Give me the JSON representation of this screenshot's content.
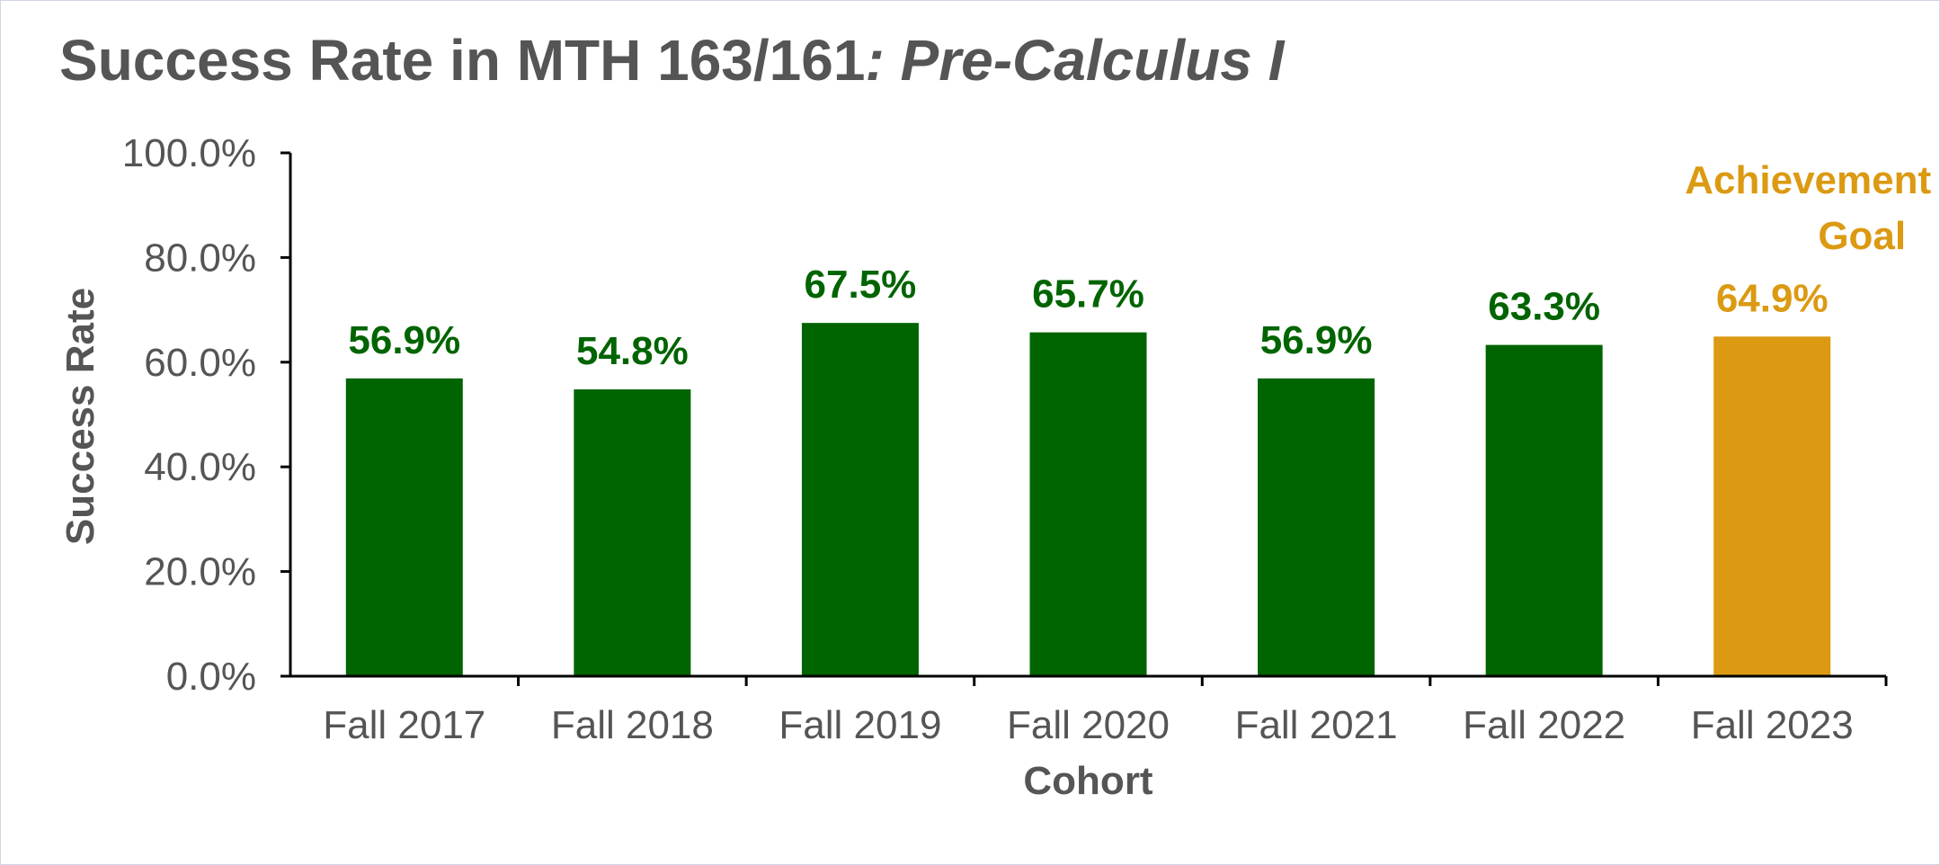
{
  "title": {
    "main": "Success Rate in MTH 163/161",
    "sub": ": Pre-Calculus I"
  },
  "chart_data": {
    "type": "bar",
    "categories": [
      "Fall 2017",
      "Fall 2018",
      "Fall 2019",
      "Fall 2020",
      "Fall 2021",
      "Fall 2022",
      "Fall 2023"
    ],
    "values": [
      56.9,
      54.8,
      67.5,
      65.7,
      56.9,
      63.3,
      64.9
    ],
    "data_labels": [
      "56.9%",
      "54.8%",
      "67.5%",
      "65.7%",
      "56.9%",
      "63.3%",
      "64.9%"
    ],
    "xlabel": "Cohort",
    "ylabel": "Success Rate",
    "ylim": [
      0,
      100
    ],
    "y_ticks": [
      0,
      20,
      40,
      60,
      80,
      100
    ],
    "y_tick_labels": [
      "0.0%",
      "20.0%",
      "40.0%",
      "60.0%",
      "80.0%",
      "100.0%"
    ],
    "grid": false,
    "annotation": {
      "text_lines": [
        "Achievement",
        "Goal"
      ],
      "category": "Fall 2023"
    },
    "highlight_index": 6,
    "colors": {
      "bar": "#006400",
      "highlight": "#DB9A12",
      "axis": "#000000"
    }
  }
}
